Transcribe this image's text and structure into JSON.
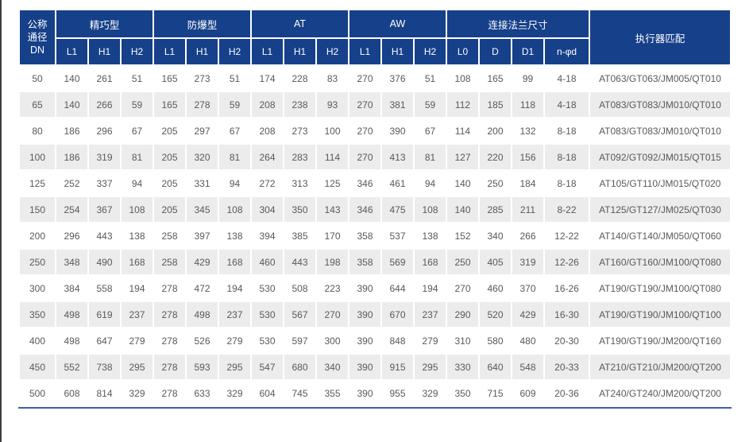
{
  "colors": {
    "header_bg": "#164089",
    "stripe_bg": "#ececec",
    "data_text": "#595959",
    "bottom_border": "#3e5fa8"
  },
  "table": {
    "header": {
      "dn_label": "公称\n通径\nDN",
      "groups": [
        {
          "label": "精巧型",
          "cols": [
            "L1",
            "H1",
            "H2"
          ]
        },
        {
          "label": "防爆型",
          "cols": [
            "L1",
            "H1",
            "H2"
          ]
        },
        {
          "label": "AT",
          "cols": [
            "L1",
            "H1",
            "H2"
          ]
        },
        {
          "label": "AW",
          "cols": [
            "L1",
            "H1",
            "H2"
          ]
        },
        {
          "label": "连接法兰尺寸",
          "cols": [
            "L0",
            "D",
            "D1",
            "n-φd"
          ]
        }
      ],
      "actuator_label": "执行器匹配"
    },
    "rows": [
      {
        "dn": "50",
        "values": [
          "140",
          "261",
          "51",
          "165",
          "273",
          "51",
          "174",
          "228",
          "83",
          "270",
          "376",
          "51",
          "108",
          "165",
          "99",
          "4-18"
        ],
        "actuator": "AT063/GT063/JM005/QT010"
      },
      {
        "dn": "65",
        "values": [
          "140",
          "266",
          "59",
          "165",
          "278",
          "59",
          "208",
          "238",
          "93",
          "270",
          "381",
          "59",
          "112",
          "185",
          "118",
          "4-18"
        ],
        "actuator": "AT083/GT083/JM010/QT010"
      },
      {
        "dn": "80",
        "values": [
          "186",
          "296",
          "67",
          "205",
          "297",
          "67",
          "208",
          "273",
          "100",
          "270",
          "390",
          "67",
          "114",
          "200",
          "132",
          "8-18"
        ],
        "actuator": "AT083/GT083/JM010/QT010"
      },
      {
        "dn": "100",
        "values": [
          "186",
          "319",
          "81",
          "205",
          "320",
          "81",
          "264",
          "283",
          "114",
          "270",
          "413",
          "81",
          "127",
          "220",
          "156",
          "8-18"
        ],
        "actuator": "AT092/GT092/JM015/QT015"
      },
      {
        "dn": "125",
        "values": [
          "252",
          "337",
          "94",
          "205",
          "331",
          "94",
          "272",
          "313",
          "125",
          "346",
          "461",
          "94",
          "140",
          "250",
          "184",
          "8-18"
        ],
        "actuator": "AT105/GT110/JM015/QT020"
      },
      {
        "dn": "150",
        "values": [
          "254",
          "367",
          "108",
          "205",
          "345",
          "108",
          "304",
          "350",
          "143",
          "346",
          "475",
          "108",
          "140",
          "285",
          "211",
          "8-22"
        ],
        "actuator": "AT125/GT127/JM025/QT030"
      },
      {
        "dn": "200",
        "values": [
          "296",
          "443",
          "138",
          "258",
          "397",
          "138",
          "394",
          "385",
          "170",
          "358",
          "537",
          "138",
          "152",
          "340",
          "266",
          "12-22"
        ],
        "actuator": "AT140/GT140/JM050/QT060"
      },
      {
        "dn": "250",
        "values": [
          "348",
          "490",
          "168",
          "258",
          "429",
          "168",
          "460",
          "443",
          "198",
          "358",
          "569",
          "168",
          "250",
          "405",
          "319",
          "12-26"
        ],
        "actuator": "AT160/GT160/JM100/QT080"
      },
      {
        "dn": "300",
        "values": [
          "384",
          "558",
          "194",
          "278",
          "472",
          "194",
          "530",
          "508",
          "223",
          "390",
          "644",
          "194",
          "270",
          "460",
          "370",
          "16-26"
        ],
        "actuator": "AT190/GT190/JM100/QT080"
      },
      {
        "dn": "350",
        "values": [
          "498",
          "619",
          "237",
          "278",
          "498",
          "237",
          "530",
          "567",
          "270",
          "390",
          "670",
          "237",
          "290",
          "520",
          "429",
          "16-30"
        ],
        "actuator": "AT190/GT190/JM100/QT100"
      },
      {
        "dn": "400",
        "values": [
          "498",
          "647",
          "279",
          "278",
          "526",
          "279",
          "530",
          "597",
          "300",
          "390",
          "848",
          "279",
          "310",
          "580",
          "480",
          "20-30"
        ],
        "actuator": "AT190/GT190/JM200/QT160"
      },
      {
        "dn": "450",
        "values": [
          "552",
          "738",
          "295",
          "278",
          "593",
          "295",
          "547",
          "680",
          "340",
          "390",
          "915",
          "295",
          "330",
          "640",
          "548",
          "20-33"
        ],
        "actuator": "AT210/GT210/JM200/QT200"
      },
      {
        "dn": "500",
        "values": [
          "608",
          "814",
          "329",
          "278",
          "633",
          "329",
          "604",
          "745",
          "355",
          "390",
          "955",
          "329",
          "350",
          "715",
          "609",
          "20-36"
        ],
        "actuator": "AT240/GT240/JM200/QT200"
      }
    ]
  }
}
